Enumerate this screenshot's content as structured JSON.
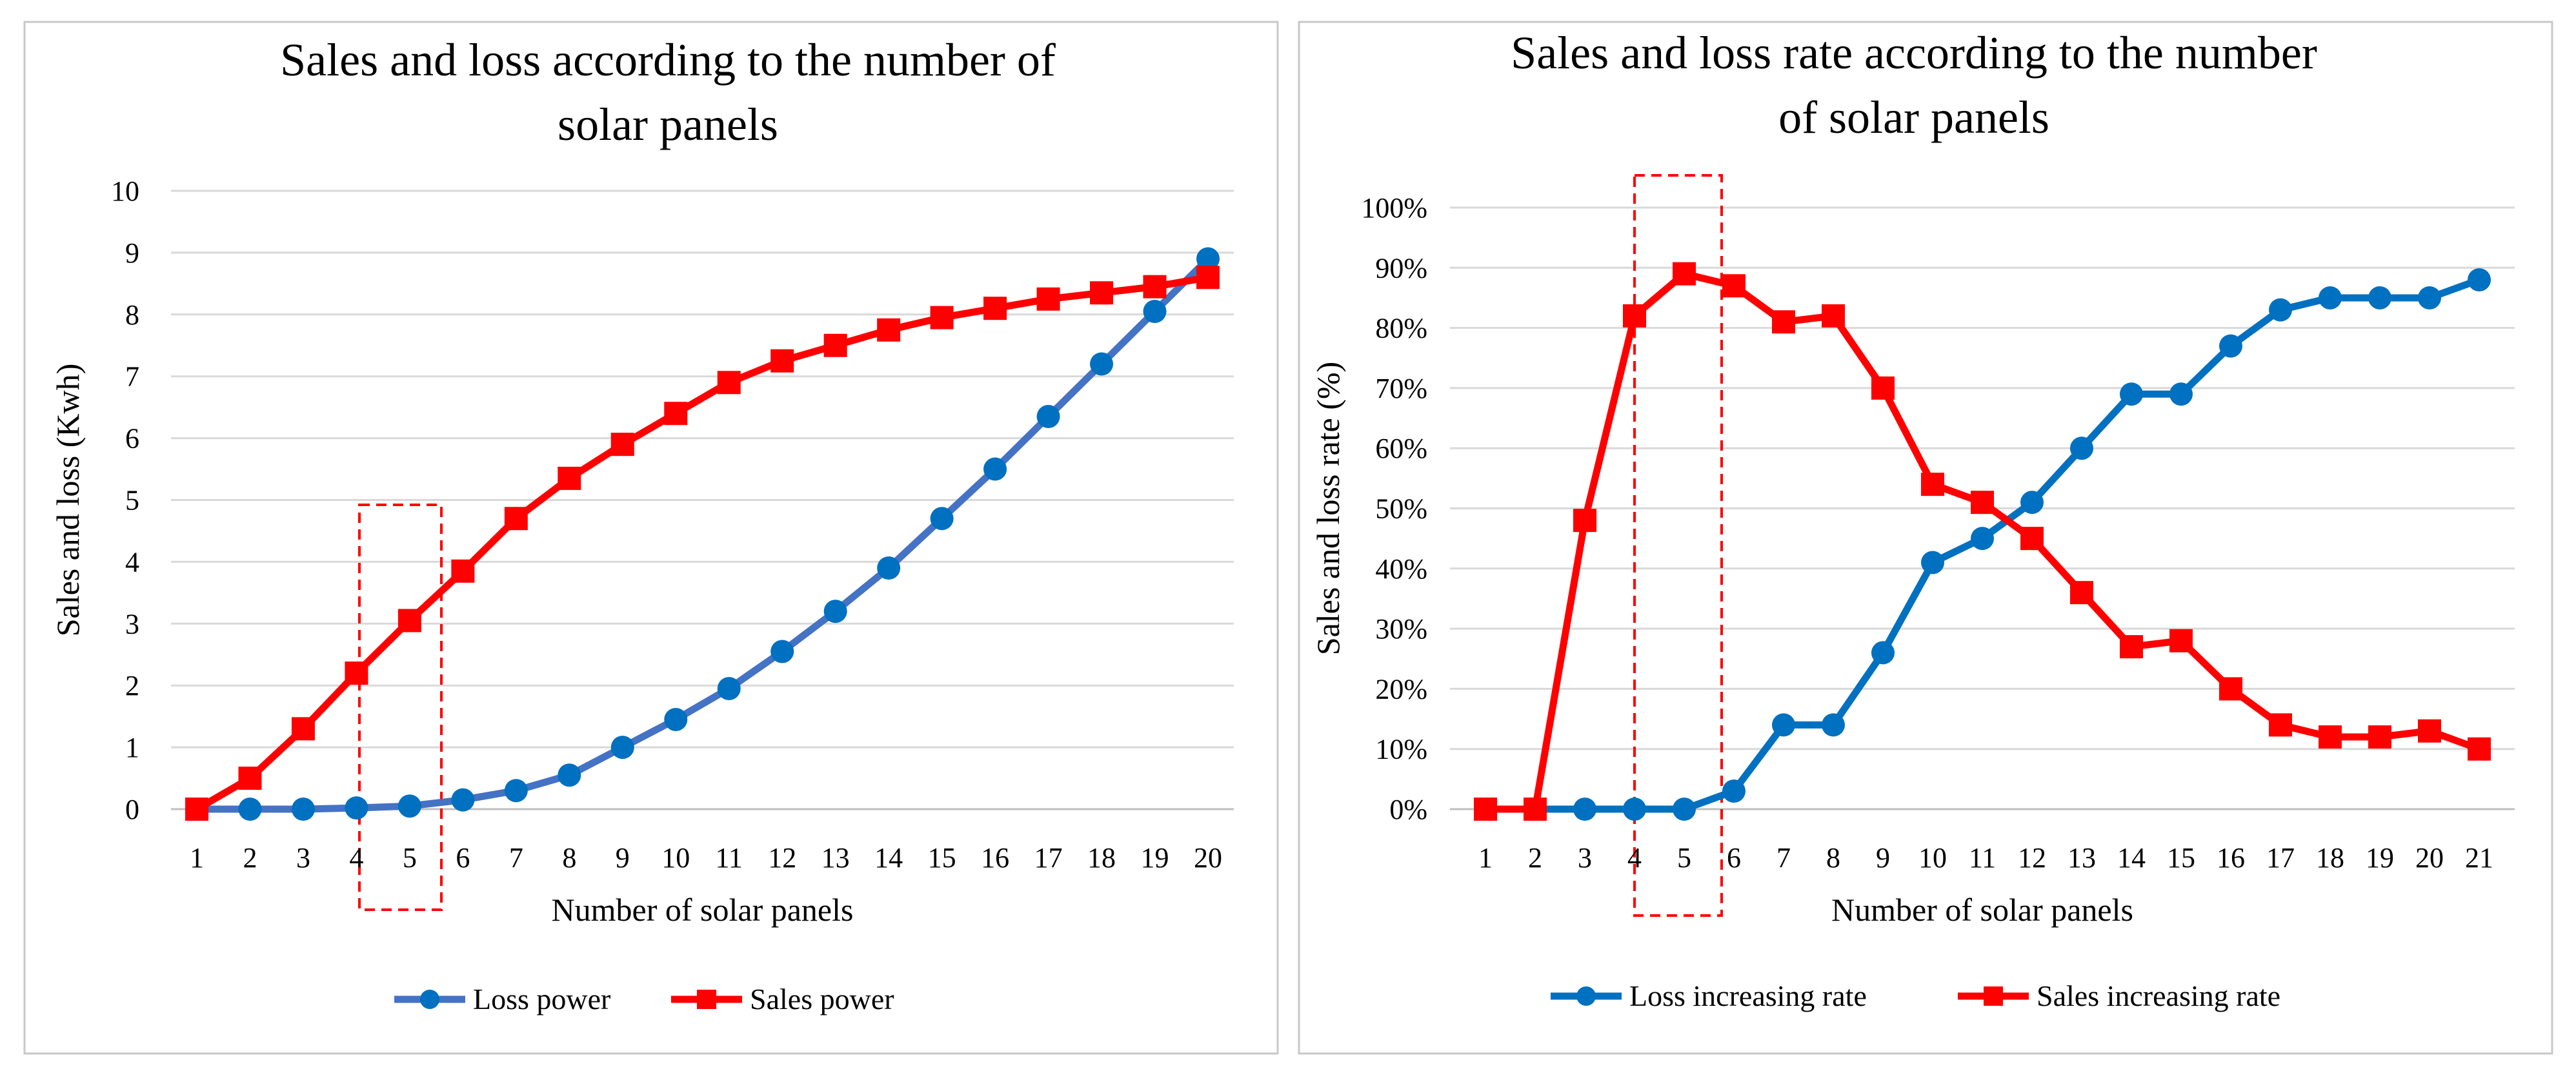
{
  "chart_data": [
    {
      "type": "line",
      "title_lines": [
        "Sales and loss according to the number of",
        "solar panels"
      ],
      "xlabel": "Number of solar panels",
      "ylabel": "Sales and loss  (Kwh)",
      "x": [
        1,
        2,
        3,
        4,
        5,
        6,
        7,
        8,
        9,
        10,
        11,
        12,
        13,
        14,
        15,
        16,
        17,
        18,
        19,
        20
      ],
      "xlim": [
        1,
        20
      ],
      "ylim": [
        0,
        10
      ],
      "y_ticks": [
        0,
        1,
        2,
        3,
        4,
        5,
        6,
        7,
        8,
        9,
        10
      ],
      "y_tick_labels": [
        "0",
        "1",
        "2",
        "3",
        "4",
        "5",
        "6",
        "7",
        "8",
        "9",
        "10"
      ],
      "grid": true,
      "legend_position": "bottom",
      "highlight_x_range": [
        4,
        5
      ],
      "series": [
        {
          "name": "Loss power",
          "color": "#4472c4",
          "marker_color": "#0070c0",
          "marker": "circle",
          "values": [
            0,
            0,
            0,
            0.02,
            0.05,
            0.15,
            0.3,
            0.55,
            1.0,
            1.45,
            1.95,
            2.55,
            3.2,
            3.9,
            4.7,
            5.5,
            6.35,
            7.2,
            8.05,
            8.9
          ]
        },
        {
          "name": "Sales power",
          "color": "#ff0000",
          "marker_color": "#ff0000",
          "marker": "square",
          "values": [
            0,
            0.5,
            1.3,
            2.2,
            3.05,
            3.85,
            4.7,
            5.35,
            5.9,
            6.4,
            6.9,
            7.25,
            7.5,
            7.75,
            7.95,
            8.1,
            8.25,
            8.35,
            8.45,
            8.6
          ]
        }
      ]
    },
    {
      "type": "line",
      "title_lines": [
        "Sales and loss rate according to the number",
        "of solar panels"
      ],
      "xlabel": "Number of solar panels",
      "ylabel": "Sales and loss rate (%)",
      "x": [
        1,
        2,
        3,
        4,
        5,
        6,
        7,
        8,
        9,
        10,
        11,
        12,
        13,
        14,
        15,
        16,
        17,
        18,
        19,
        20,
        21
      ],
      "xlim": [
        1,
        21
      ],
      "ylim": [
        0,
        100
      ],
      "y_ticks": [
        0,
        10,
        20,
        30,
        40,
        50,
        60,
        70,
        80,
        90,
        100
      ],
      "y_tick_labels": [
        "0%",
        "10%",
        "20%",
        "30%",
        "40%",
        "50%",
        "60%",
        "70%",
        "80%",
        "90%",
        "100%"
      ],
      "grid": true,
      "legend_position": "bottom",
      "highlight_x_range": [
        4,
        5
      ],
      "series": [
        {
          "name": "Loss increasing rate",
          "color": "#0070c0",
          "marker_color": "#0070c0",
          "marker": "circle",
          "values": [
            0,
            0,
            0,
            0,
            0,
            3,
            14,
            14,
            26,
            41,
            45,
            51,
            60,
            69,
            69,
            77,
            83,
            85,
            85,
            85,
            88
          ]
        },
        {
          "name": "Sales increasing rate",
          "color": "#ff0000",
          "marker_color": "#ff0000",
          "marker": "square",
          "values": [
            0,
            0,
            48,
            82,
            89,
            87,
            81,
            82,
            70,
            54,
            51,
            45,
            36,
            27,
            28,
            20,
            14,
            12,
            12,
            13,
            10
          ]
        }
      ]
    }
  ]
}
